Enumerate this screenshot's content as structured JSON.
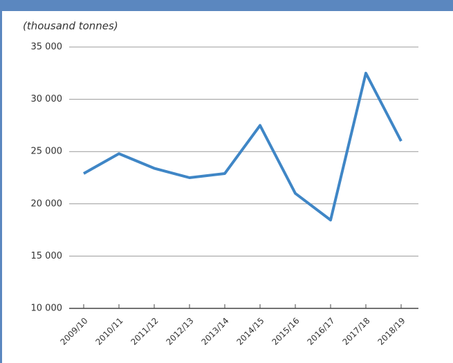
{
  "chart_data": {
    "type": "line",
    "subtitle": "(thousand tonnes)",
    "categories": [
      "2009/10",
      "2010/11",
      "2011/12",
      "2012/13",
      "2013/14",
      "2014/15",
      "2015/16",
      "2016/17",
      "2017/18",
      "2018/19"
    ],
    "series": [
      {
        "color": "#3f86c6",
        "values": [
          22900,
          24800,
          23400,
          22500,
          22900,
          27500,
          21000,
          18450,
          32500,
          26000
        ]
      }
    ],
    "ylim": [
      10000,
      35000
    ],
    "yticks": [
      {
        "value": 10000,
        "label": "10 000"
      },
      {
        "value": 15000,
        "label": "15 000"
      },
      {
        "value": 20000,
        "label": "20 000"
      },
      {
        "value": 25000,
        "label": "25 000"
      },
      {
        "value": 30000,
        "label": "30 000"
      },
      {
        "value": 35000,
        "label": "35 000"
      }
    ],
    "grid": true
  }
}
